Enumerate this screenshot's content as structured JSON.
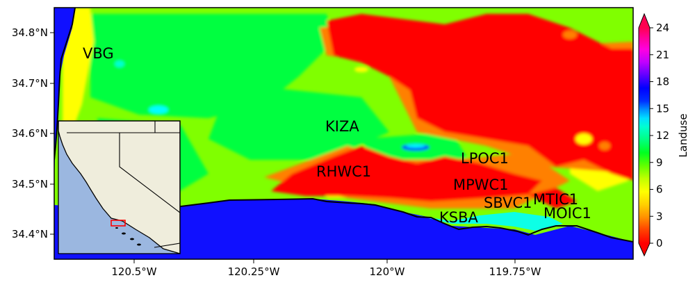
{
  "map": {
    "lat_ticks": [
      "34.8°N",
      "34.7°N",
      "34.6°N",
      "34.5°N",
      "34.4°N"
    ],
    "lon_ticks": [
      "120.5°W",
      "120.25°W",
      "120°W",
      "119.75°W"
    ],
    "stations": [
      "VBG",
      "KIZA",
      "RHWC1",
      "LPOC1",
      "MPWC1",
      "SBVC1",
      "MTIC1",
      "MOIC1",
      "KSBA"
    ]
  },
  "colorbar": {
    "label": "Landuse",
    "ticks": [
      "24",
      "21",
      "18",
      "15",
      "12",
      "9",
      "6",
      "3",
      "0"
    ],
    "colors": {
      "red": "#ff0000",
      "orange": "#ff8000",
      "yellow": "#ffff00",
      "lime": "#80ff00",
      "green": "#00ff40",
      "cyan": "#00ffff",
      "blue": "#0010ff",
      "magenta": "#ff00ff",
      "pink": "#ff0080"
    }
  },
  "inset": {
    "ocean_color": "#9bb7e0",
    "land_color": "#efeddc",
    "box_color": "#ff0000"
  }
}
